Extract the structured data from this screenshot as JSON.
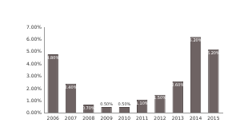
{
  "chart_data": {
    "type": "bar",
    "categories": [
      "2006",
      "2007",
      "2008",
      "2009",
      "2010",
      "2011",
      "2012",
      "2013",
      "2014",
      "2015"
    ],
    "values": [
      4.8,
      2.4,
      0.7,
      0.5,
      0.5,
      1.1,
      1.5,
      2.6,
      6.2,
      5.2
    ],
    "value_labels": [
      "4.80%",
      "2.40%",
      "0.70%",
      "0.50%",
      "0.50%",
      "1.10%",
      "1.50%",
      "2.60%",
      "6.20%",
      "5.20%"
    ],
    "data_labels": true,
    "color": "#6e6363",
    "ylim": [
      0,
      7
    ],
    "yticks": [
      {
        "value": 0,
        "label": "0.00%"
      },
      {
        "value": 1,
        "label": "1.00%"
      },
      {
        "value": 2,
        "label": "2.00%"
      },
      {
        "value": 3,
        "label": "3.00%"
      },
      {
        "value": 4,
        "label": "4.00%"
      },
      {
        "value": 5,
        "label": "5.00%"
      },
      {
        "value": 6,
        "label": "6.00%"
      },
      {
        "value": 7,
        "label": "7.00%"
      }
    ],
    "grid": false
  }
}
